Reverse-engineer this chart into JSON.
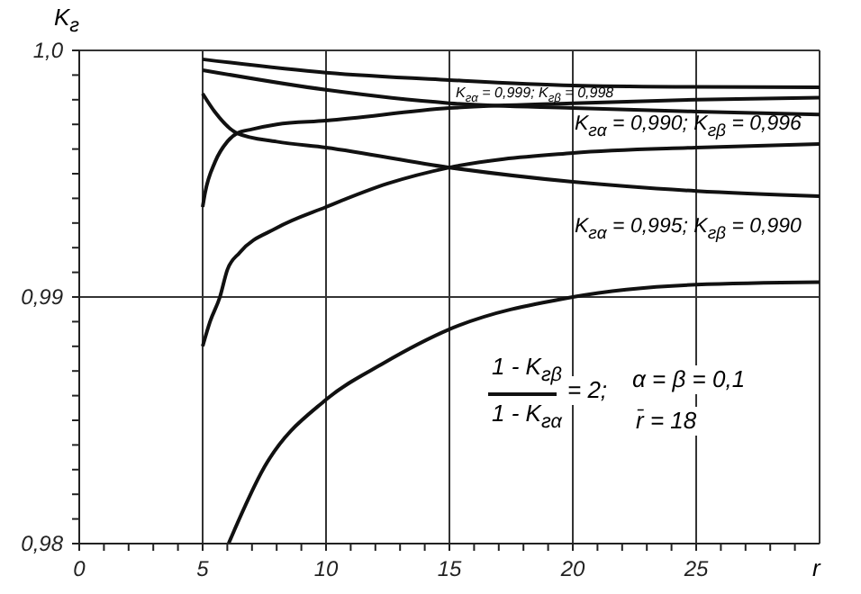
{
  "chart_data": {
    "type": "line",
    "xlabel": "r",
    "ylabel": "K$_{г}$",
    "xlim": [
      0,
      30
    ],
    "ylim": [
      0.98,
      1.0
    ],
    "xticks": [
      0,
      {
        "value": 1,
        "label": null
      },
      {
        "value": 2,
        "label": null
      },
      {
        "value": 3,
        "label": null
      },
      {
        "value": 4,
        "label": null
      },
      5,
      {
        "value": 6,
        "label": null
      },
      {
        "value": 7,
        "label": null
      },
      {
        "value": 8,
        "label": null
      },
      {
        "value": 9,
        "label": null
      },
      10,
      {
        "value": 11,
        "label": null
      },
      {
        "value": 12,
        "label": null
      },
      {
        "value": 13,
        "label": null
      },
      {
        "value": 14,
        "label": null
      },
      15,
      {
        "value": 16,
        "label": null
      },
      {
        "value": 17,
        "label": null
      },
      {
        "value": 18,
        "label": null
      },
      {
        "value": 19,
        "label": null
      },
      20,
      {
        "value": 21,
        "label": null
      },
      {
        "value": 22,
        "label": null
      },
      {
        "value": 23,
        "label": null
      },
      {
        "value": 24,
        "label": null
      },
      25,
      {
        "value": 26,
        "label": null
      },
      {
        "value": 27,
        "label": null
      },
      {
        "value": 28,
        "label": null
      },
      {
        "value": 29,
        "label": null
      }
    ],
    "yticks": [
      {
        "value": 0.98,
        "label": "0,98"
      },
      {
        "value": 0.981,
        "label": null
      },
      {
        "value": 0.982,
        "label": null
      },
      {
        "value": 0.983,
        "label": null
      },
      {
        "value": 0.984,
        "label": null
      },
      {
        "value": 0.985,
        "label": null
      },
      {
        "value": 0.986,
        "label": null
      },
      {
        "value": 0.987,
        "label": null
      },
      {
        "value": 0.988,
        "label": null
      },
      {
        "value": 0.989,
        "label": null
      },
      {
        "value": 0.99,
        "label": "0,99"
      },
      {
        "value": 0.991,
        "label": null
      },
      {
        "value": 0.992,
        "label": null
      },
      {
        "value": 0.993,
        "label": null
      },
      {
        "value": 0.994,
        "label": null
      },
      {
        "value": 0.995,
        "label": null
      },
      {
        "value": 0.996,
        "label": null
      },
      {
        "value": 0.997,
        "label": null
      },
      {
        "value": 0.998,
        "label": null
      },
      {
        "value": 0.999,
        "label": null
      },
      {
        "value": 1.0,
        "label": "1,0"
      }
    ],
    "grid": true,
    "legend": false,
    "marker": "none",
    "line_style": "solid",
    "series": [
      {
        "color": "#111111",
        "x": [
          5,
          10,
          15,
          20,
          25,
          30
        ],
        "values": [
          0.99964,
          0.9991,
          0.9988,
          0.99858,
          0.99852,
          0.9985
        ]
      },
      {
        "color": "#111111",
        "x": [
          5,
          10,
          15,
          20,
          25,
          30
        ],
        "values": [
          0.9992,
          0.9984,
          0.99786,
          0.99766,
          0.99752,
          0.9974
        ]
      },
      {
        "color": "#111111",
        "x": [
          5,
          5.1,
          5.5,
          6,
          6.4,
          7,
          8,
          10,
          15,
          20,
          25,
          30
        ],
        "values": [
          0.99365,
          0.99423,
          0.99547,
          0.9963,
          0.99664,
          0.9968,
          0.997,
          0.99715,
          0.99766,
          0.99786,
          0.998,
          0.99808
        ]
      },
      {
        "color": "#111111",
        "x": [
          5,
          5.5,
          6.4,
          8,
          10,
          15,
          20,
          25,
          30
        ],
        "values": [
          0.99825,
          0.9975,
          0.99664,
          0.9963,
          0.99606,
          0.99525,
          0.99467,
          0.9943,
          0.99409
        ]
      },
      {
        "color": "#111111",
        "x": [
          5,
          5.3,
          5.7,
          6,
          6.5,
          8,
          10,
          12.5,
          15,
          20,
          25,
          30
        ],
        "values": [
          0.988,
          0.989,
          0.99,
          0.9911,
          0.9918,
          0.9928,
          0.99365,
          0.9946,
          0.99525,
          0.99584,
          0.99606,
          0.9962
        ]
      },
      {
        "color": "#111111",
        "x": [
          6.05,
          7.5,
          10,
          12.3,
          15,
          20,
          25,
          30
        ],
        "values": [
          0.98,
          0.9831,
          0.98584,
          0.9873,
          0.98869,
          0.99,
          0.9905,
          0.9906
        ]
      }
    ],
    "annotations": [
      "K$_{гα}$ = 0,999; K$_{гβ}$ = 0,998",
      "K$_{гα}$ = 0,990; K$_{гβ}$ = 0,996",
      "K$_{гα}$ = 0,995; K$_{гβ}$ = 0,990",
      "1 - K$_{гβ}$",
      "1 - K$_{гα}$",
      "= 2;",
      "α = β = 0,1",
      "r̄ = 18"
    ]
  }
}
